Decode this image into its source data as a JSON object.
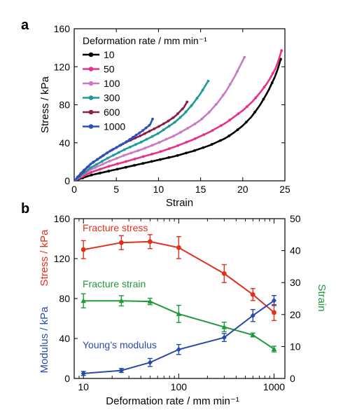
{
  "chart_data": [
    {
      "panel_label": "a",
      "type": "line",
      "xlabel": "Strain",
      "ylabel": "Stress / kPa",
      "xlim": [
        0,
        25
      ],
      "ylim": [
        0,
        160
      ],
      "x_ticks": [
        0,
        5,
        10,
        15,
        20,
        25
      ],
      "y_ticks": [
        0,
        40,
        80,
        120,
        160
      ],
      "legend_title": "Deformation rate / mm min⁻¹",
      "legend_position": "top-left",
      "grid": false,
      "series": [
        {
          "name": "10",
          "color": "#000000",
          "x": [
            0,
            2,
            4,
            6,
            8,
            10,
            12,
            14,
            16,
            18,
            19,
            20,
            21,
            22,
            23,
            24,
            24.5
          ],
          "y": [
            0,
            6,
            10,
            14,
            18,
            22,
            26,
            31,
            37,
            45,
            51,
            58,
            67,
            79,
            94,
            113,
            128
          ]
        },
        {
          "name": "50",
          "color": "#e8318a",
          "x": [
            0,
            2,
            4,
            6,
            8,
            10,
            12,
            14,
            16,
            18,
            20,
            21,
            22,
            23,
            24,
            24.6
          ],
          "y": [
            0,
            9,
            15,
            20,
            25,
            30,
            36,
            43,
            51,
            61,
            74,
            82,
            92,
            104,
            120,
            137
          ]
        },
        {
          "name": "100",
          "color": "#c87ac4",
          "x": [
            0,
            2,
            4,
            6,
            8,
            10,
            12,
            14,
            15,
            16,
            17,
            18,
            19,
            20.2
          ],
          "y": [
            0,
            12,
            20,
            27,
            33,
            40,
            48,
            58,
            64,
            72,
            82,
            94,
            109,
            130
          ]
        },
        {
          "name": "300",
          "color": "#1f9a9a",
          "x": [
            0,
            2,
            4,
            6,
            8,
            10,
            12,
            13,
            14,
            15,
            15.9
          ],
          "y": [
            0,
            14,
            24,
            33,
            41,
            50,
            62,
            70,
            80,
            92,
            105
          ]
        },
        {
          "name": "600",
          "color": "#8c1c4c",
          "x": [
            0,
            2,
            4,
            6,
            8,
            10,
            11,
            12,
            13,
            13.4
          ],
          "y": [
            0,
            18,
            30,
            40,
            48,
            57,
            62,
            68,
            77,
            83
          ]
        },
        {
          "name": "1000",
          "color": "#2a52be",
          "x": [
            0,
            1,
            2,
            3,
            4,
            5,
            6,
            7,
            8,
            9,
            9.3
          ],
          "y": [
            0,
            10,
            18,
            24,
            30,
            35,
            40,
            46,
            52,
            59,
            65
          ]
        }
      ]
    },
    {
      "panel_label": "b",
      "type": "line",
      "xlabel": "Deformation rate / mm min⁻¹",
      "x_scale": "log",
      "xlim": [
        8,
        1300
      ],
      "x_ticks": [
        10,
        100,
        1000
      ],
      "ylim_left": [
        0,
        160
      ],
      "y_ticks_left": [
        0,
        40,
        80,
        120,
        160
      ],
      "ylabel_left_top": "Stress / kPa",
      "ylabel_left_bottom": "Modulus / kPa",
      "ylim_right": [
        0,
        50
      ],
      "y_ticks_right": [
        0,
        10,
        20,
        30,
        40,
        50
      ],
      "ylabel_right": "Strain",
      "grid": false,
      "x": [
        10,
        25,
        50,
        100,
        300,
        600,
        1000
      ],
      "series": [
        {
          "name": "Fracture stress",
          "axis": "left",
          "color": "#e0301e",
          "values": [
            129,
            136,
            137,
            131,
            105,
            84,
            66
          ],
          "errors": [
            9,
            7,
            7,
            11,
            9,
            6,
            8
          ]
        },
        {
          "name": "Fracture strain",
          "axis": "right",
          "color": "#1e9a3c",
          "values": [
            24.3,
            24.3,
            24.1,
            20.2,
            16.1,
            13.6,
            9.2
          ],
          "errors": [
            2.2,
            1.6,
            1.0,
            2.7,
            1.5,
            0.6,
            0.9
          ]
        },
        {
          "name": "Young’s modulus",
          "axis": "left",
          "color": "#2a4aa8",
          "values": [
            5,
            8,
            16,
            29,
            41,
            63,
            78
          ],
          "errors": [
            2,
            2,
            4,
            5,
            4,
            6,
            5
          ]
        }
      ]
    }
  ]
}
